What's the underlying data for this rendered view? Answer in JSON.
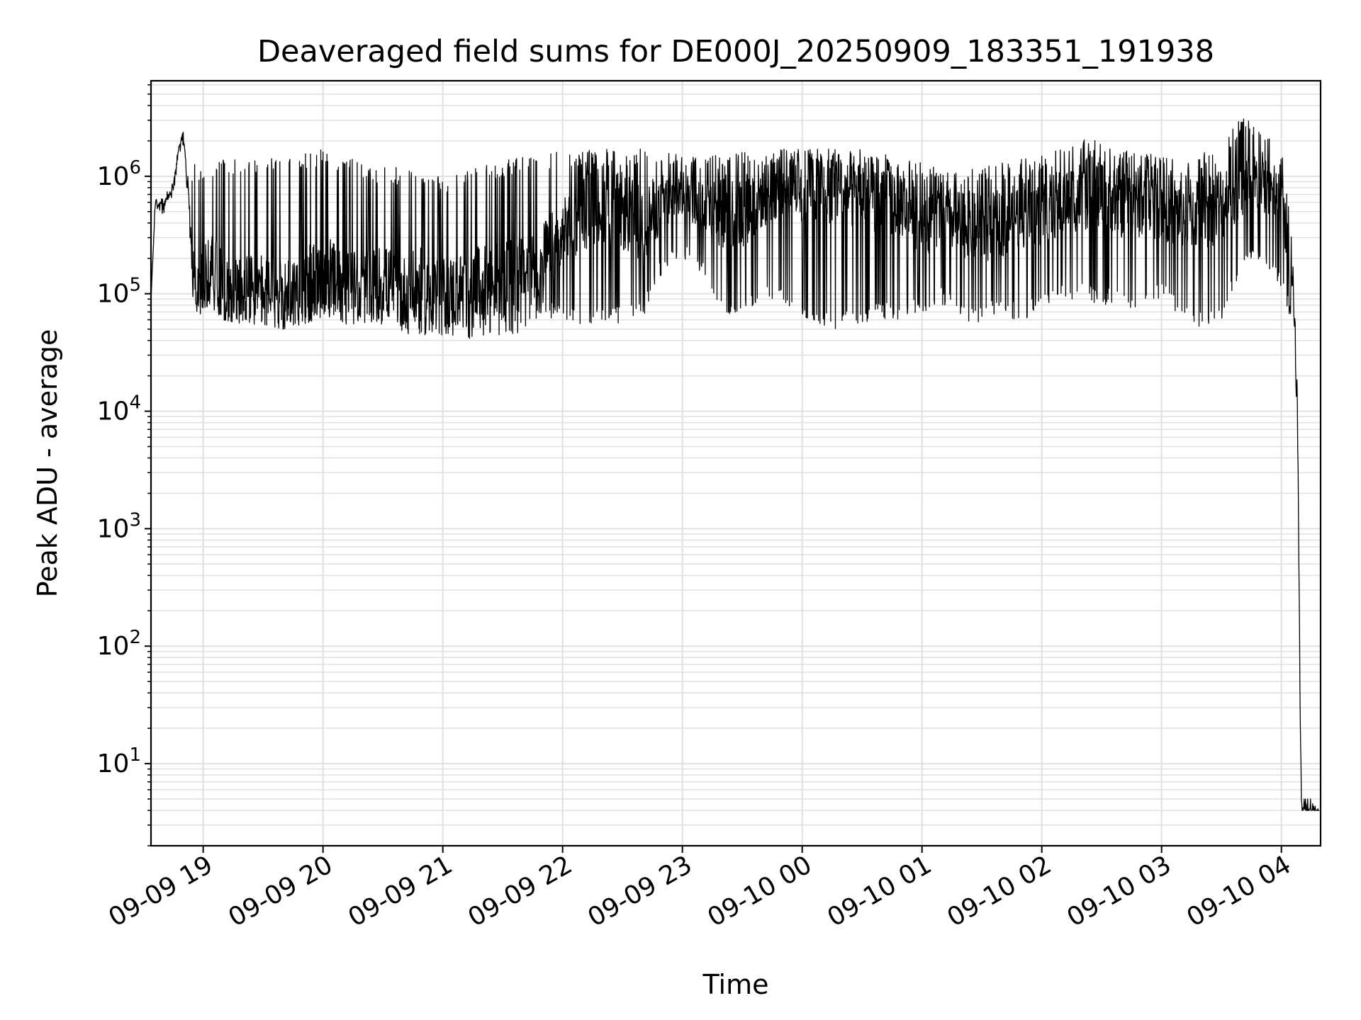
{
  "chart_data": {
    "type": "line",
    "title": "Deaveraged field sums for DE000J_20250909_183351_191938",
    "xlabel": "Time",
    "ylabel": "Peak ADU - average",
    "yscale": "log",
    "ylim": [
      2,
      6500000
    ],
    "xlim": [
      "2025-09-09 18:33:51",
      "2025-09-10 04:19:38"
    ],
    "grid": true,
    "line_color": "#000000",
    "grid_color": "#e0e0e0",
    "x_ticks": [
      {
        "value": "2025-09-09 19:00",
        "label": "09-09 19"
      },
      {
        "value": "2025-09-09 20:00",
        "label": "09-09 20"
      },
      {
        "value": "2025-09-09 21:00",
        "label": "09-09 21"
      },
      {
        "value": "2025-09-09 22:00",
        "label": "09-09 22"
      },
      {
        "value": "2025-09-09 23:00",
        "label": "09-09 23"
      },
      {
        "value": "2025-09-10 00:00",
        "label": "09-10 00"
      },
      {
        "value": "2025-09-10 01:00",
        "label": "09-10 01"
      },
      {
        "value": "2025-09-10 02:00",
        "label": "09-10 02"
      },
      {
        "value": "2025-09-10 03:00",
        "label": "09-10 03"
      },
      {
        "value": "2025-09-10 04:00",
        "label": "09-10 04"
      }
    ],
    "y_ticks": [
      {
        "value": 10,
        "base": "10",
        "exp": "1"
      },
      {
        "value": 100,
        "base": "10",
        "exp": "2"
      },
      {
        "value": 1000,
        "base": "10",
        "exp": "3"
      },
      {
        "value": 10000,
        "base": "10",
        "exp": "4"
      },
      {
        "value": 100000,
        "base": "10",
        "exp": "5"
      },
      {
        "value": 1000000,
        "base": "10",
        "exp": "6"
      }
    ],
    "series": [
      {
        "x": [
          "2025-09-09 18:34",
          "2025-09-09 18:36",
          "2025-09-09 18:40",
          "2025-09-09 18:45",
          "2025-09-09 18:48",
          "2025-09-09 18:50",
          "2025-09-09 18:53",
          "2025-09-09 18:55",
          "2025-09-09 18:57",
          "2025-09-09 19:00",
          "2025-09-09 19:05",
          "2025-09-09 19:10",
          "2025-09-09 19:20",
          "2025-09-09 19:30",
          "2025-09-09 19:40",
          "2025-09-09 19:50",
          "2025-09-09 20:00",
          "2025-09-09 20:10",
          "2025-09-09 20:20",
          "2025-09-09 20:30",
          "2025-09-09 20:40",
          "2025-09-09 20:50",
          "2025-09-09 21:00",
          "2025-09-09 21:10",
          "2025-09-09 21:20",
          "2025-09-09 21:30",
          "2025-09-09 21:40",
          "2025-09-09 21:50",
          "2025-09-09 22:00",
          "2025-09-09 22:10",
          "2025-09-09 22:20",
          "2025-09-09 22:30",
          "2025-09-09 22:40",
          "2025-09-09 22:50",
          "2025-09-09 23:00",
          "2025-09-09 23:10",
          "2025-09-09 23:20",
          "2025-09-09 23:30",
          "2025-09-09 23:40",
          "2025-09-09 23:50",
          "2025-09-10 00:00",
          "2025-09-10 00:10",
          "2025-09-10 00:20",
          "2025-09-10 00:30",
          "2025-09-10 00:40",
          "2025-09-10 00:50",
          "2025-09-10 01:00",
          "2025-09-10 01:10",
          "2025-09-10 01:20",
          "2025-09-10 01:30",
          "2025-09-10 01:40",
          "2025-09-10 01:50",
          "2025-09-10 02:00",
          "2025-09-10 02:10",
          "2025-09-10 02:20",
          "2025-09-10 02:30",
          "2025-09-10 02:40",
          "2025-09-10 02:50",
          "2025-09-10 03:00",
          "2025-09-10 03:10",
          "2025-09-10 03:20",
          "2025-09-10 03:30",
          "2025-09-10 03:40",
          "2025-09-10 03:50",
          "2025-09-10 04:00",
          "2025-09-10 04:03",
          "2025-09-10 04:06",
          "2025-09-10 04:08",
          "2025-09-10 04:10",
          "2025-09-10 04:19"
        ],
        "values": [
          100000,
          600000,
          550000,
          800000,
          1800000,
          2300000,
          600000,
          150000,
          90000,
          120000,
          200000,
          100000,
          110000,
          100000,
          95000,
          110000,
          150000,
          120000,
          110000,
          130000,
          100000,
          120000,
          100000,
          110000,
          120000,
          130000,
          150000,
          200000,
          300000,
          500000,
          600000,
          500000,
          400000,
          600000,
          700000,
          600000,
          500000,
          500000,
          700000,
          900000,
          800000,
          900000,
          800000,
          700000,
          700000,
          600000,
          400000,
          450000,
          400000,
          350000,
          400000,
          500000,
          500000,
          600000,
          700000,
          700000,
          600000,
          600000,
          550000,
          500000,
          500000,
          600000,
          800000,
          900000,
          700000,
          300000,
          100000,
          10000,
          4,
          4
        ],
        "min": [
          100000,
          500000,
          480000,
          650000,
          1500000,
          1900000,
          400000,
          80000,
          70000,
          65000,
          70000,
          60000,
          55000,
          55000,
          50000,
          55000,
          60000,
          55000,
          55000,
          50000,
          45000,
          45000,
          42000,
          42000,
          40000,
          45000,
          45000,
          60000,
          60000,
          55000,
          55000,
          55000,
          60000,
          150000,
          200000,
          150000,
          60000,
          70000,
          80000,
          90000,
          55000,
          50000,
          50000,
          55000,
          60000,
          60000,
          70000,
          80000,
          60000,
          55000,
          70000,
          55000,
          80000,
          90000,
          90000,
          80000,
          80000,
          70000,
          90000,
          60000,
          50000,
          60000,
          150000,
          200000,
          100000,
          70000,
          50000,
          2000,
          4,
          4
        ],
        "max": [
          100000,
          700000,
          650000,
          900000,
          2000000,
          2400000,
          800000,
          1300000,
          1300000,
          1300000,
          1400000,
          1400000,
          1400000,
          1500000,
          1500000,
          1600000,
          1700000,
          1500000,
          1300000,
          1200000,
          1200000,
          1200000,
          1000000,
          1100000,
          1200000,
          1400000,
          1500000,
          1600000,
          1600000,
          1700000,
          1700000,
          1700000,
          1800000,
          1800000,
          1500000,
          1500000,
          1600000,
          1700000,
          1700000,
          1700000,
          1700000,
          1700000,
          1700000,
          1700000,
          1600000,
          1400000,
          1300000,
          1200000,
          1200000,
          1200000,
          1300000,
          1400000,
          1500000,
          1800000,
          2100000,
          2000000,
          1800000,
          1600000,
          1500000,
          1500000,
          1600000,
          1800000,
          3300000,
          3000000,
          1800000,
          900000,
          200000,
          20000,
          5,
          5
        ]
      }
    ]
  }
}
